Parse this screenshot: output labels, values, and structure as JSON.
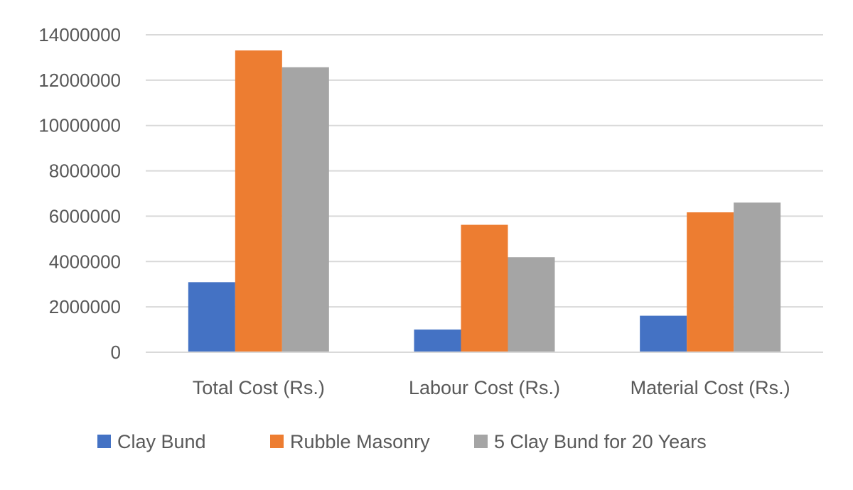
{
  "chart_data": {
    "type": "bar",
    "title": "",
    "xlabel": "",
    "ylabel": "",
    "ylim": [
      0,
      14000000
    ],
    "yticks": [
      "0",
      "2000000",
      "4000000",
      "6000000",
      "8000000",
      "10000000",
      "12000000",
      "14000000"
    ],
    "grid": true,
    "legend_position": "bottom",
    "categories": [
      "Total Cost (Rs.)",
      "Labour Cost (Rs.)",
      "Material Cost (Rs.)"
    ],
    "series": [
      {
        "name": "Clay Bund",
        "color": "#4472C4",
        "values": [
          3090000,
          1000000,
          1610000
        ]
      },
      {
        "name": "Rubble Masonry",
        "color": "#ED7D31",
        "values": [
          13310000,
          5620000,
          6170000
        ]
      },
      {
        "name": "5 Clay Bund for 20 Years",
        "color": "#A5A5A5",
        "values": [
          12570000,
          4190000,
          6600000
        ]
      }
    ]
  }
}
